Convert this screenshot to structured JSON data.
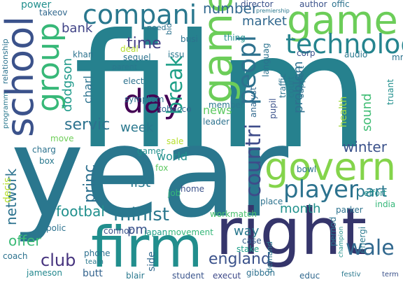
{
  "words": [
    {
      "text": "film",
      "color": "#26818e"
    },
    {
      "text": "year",
      "color": "#2a778e"
    },
    {
      "text": "right",
      "color": "#35356b"
    },
    {
      "text": "firm",
      "color": "#218e8d"
    },
    {
      "text": "govern",
      "color": "#84d44b"
    },
    {
      "text": "game",
      "color": "#6ccd59"
    },
    {
      "text": "share",
      "color": "#75d054"
    },
    {
      "text": "school",
      "color": "#3b528b"
    },
    {
      "text": "day",
      "color": "#440154"
    },
    {
      "text": "group",
      "color": "#37b878"
    },
    {
      "text": "technolog",
      "color": "#25848e"
    },
    {
      "text": "compani",
      "color": "#2a788e"
    },
    {
      "text": "player",
      "color": "#2c728e"
    },
    {
      "text": "peopl",
      "color": "#2d718e"
    },
    {
      "text": "break",
      "color": "#1fa088"
    },
    {
      "text": "countri",
      "color": "#3e4c8a"
    },
    {
      "text": "wale",
      "color": "#31688e"
    },
    {
      "text": "england",
      "color": "#3b528b"
    },
    {
      "text": "minist",
      "color": "#2a788e"
    },
    {
      "text": "servic",
      "color": "#2c728e"
    },
    {
      "text": "time",
      "color": "#433e85"
    },
    {
      "text": "winter",
      "color": "#3b528b"
    },
    {
      "text": "club",
      "color": "#46337e"
    },
    {
      "text": "footbal",
      "color": "#21908d"
    },
    {
      "text": "network",
      "color": "#2c728e"
    },
    {
      "text": "princ",
      "color": "#2d708e"
    },
    {
      "text": "part",
      "color": "#2a788e"
    },
    {
      "text": "offer",
      "color": "#3aba76"
    },
    {
      "text": "month",
      "color": "#21918c"
    },
    {
      "text": "list",
      "color": "#2a788e"
    },
    {
      "text": "week",
      "color": "#2a788e"
    },
    {
      "text": "number",
      "color": "#31688e"
    },
    {
      "text": "market",
      "color": "#31688e"
    },
    {
      "text": "bank",
      "color": "#414487"
    },
    {
      "text": "dodgson",
      "color": "#1f9a8a"
    },
    {
      "text": "charl",
      "color": "#2c728e"
    },
    {
      "text": "way",
      "color": "#2a788e"
    },
    {
      "text": "pm",
      "color": "#3b528b"
    },
    {
      "text": "problem",
      "color": "#2d708e"
    },
    {
      "text": "sound",
      "color": "#3fbc73"
    },
    {
      "text": "news",
      "color": "#5ec962"
    },
    {
      "text": "world",
      "color": "#21908d"
    },
    {
      "text": "health",
      "color": "#9fda3a"
    },
    {
      "text": "decis",
      "color": "#b5de2b"
    },
    {
      "text": "power",
      "color": "#218f8d"
    },
    {
      "text": "jameson",
      "color": "#23888e"
    },
    {
      "text": "phone",
      "color": "#2d708e"
    },
    {
      "text": "butt",
      "color": "#33638d"
    },
    {
      "text": "stake",
      "color": "#1f9e89"
    },
    {
      "text": "case",
      "color": "#355f8d"
    },
    {
      "text": "side",
      "color": "#31688e"
    },
    {
      "text": "parker",
      "color": "#2c728e"
    },
    {
      "text": "student",
      "color": "#3a548c"
    },
    {
      "text": "blair",
      "color": "#2a788e"
    },
    {
      "text": "execut",
      "color": "#3e4989"
    },
    {
      "text": "gibbon",
      "color": "#2d708e"
    },
    {
      "text": "educ",
      "color": "#31688e"
    },
    {
      "text": "festiv",
      "color": "#2a788e"
    },
    {
      "text": "term",
      "color": "#3b528b"
    },
    {
      "text": "coach",
      "color": "#2c728e"
    },
    {
      "text": "team",
      "color": "#2a788e"
    },
    {
      "text": "polic",
      "color": "#2c728e"
    },
    {
      "text": "connor",
      "color": "#3b528b"
    },
    {
      "text": "japan",
      "color": "#1fa088"
    },
    {
      "text": "movement",
      "color": "#35b779"
    },
    {
      "text": "workmatch",
      "color": "#4ac16d"
    },
    {
      "text": "place",
      "color": "#2c728e"
    },
    {
      "text": "demand",
      "color": "#2a788e"
    },
    {
      "text": "pernod",
      "color": "#2c728e"
    },
    {
      "text": "energi",
      "color": "#2a788e"
    },
    {
      "text": "champion",
      "color": "#21918c"
    },
    {
      "text": "india",
      "color": "#35b779"
    },
    {
      "text": "effort",
      "color": "#21918c"
    },
    {
      "text": "bowl",
      "color": "#2c728e"
    },
    {
      "text": "home",
      "color": "#3b528b"
    },
    {
      "text": "job",
      "color": "#35b779"
    },
    {
      "text": "fox",
      "color": "#5ec962"
    },
    {
      "text": "sale",
      "color": "#b5de2b"
    },
    {
      "text": "gamer",
      "color": "#21908d"
    },
    {
      "text": "charg",
      "color": "#2c728e"
    },
    {
      "text": "move",
      "color": "#6ece58"
    },
    {
      "text": "box",
      "color": "#2a788e"
    },
    {
      "text": "symptom",
      "color": "#2c728e"
    },
    {
      "text": "tobacco",
      "color": "#31688e"
    },
    {
      "text": "elect",
      "color": "#2c728e"
    },
    {
      "text": "member",
      "color": "#2a788e"
    },
    {
      "text": "leader",
      "color": "#2c728e"
    },
    {
      "text": "analyst",
      "color": "#31688e"
    },
    {
      "text": "pupil",
      "color": "#3b528b"
    },
    {
      "text": "traffic",
      "color": "#2c728e"
    },
    {
      "text": "court",
      "color": "#2a788e"
    },
    {
      "text": "support",
      "color": "#2c728e"
    },
    {
      "text": "director",
      "color": "#3b528b"
    },
    {
      "text": "offic",
      "color": "#2c728e"
    },
    {
      "text": "author",
      "color": "#3b528b"
    },
    {
      "text": "premiership",
      "color": "#2a788e"
    },
    {
      "text": "takeov",
      "color": "#31688e"
    },
    {
      "text": "need",
      "color": "#2c728e"
    },
    {
      "text": "deal",
      "color": "#b5de2b"
    },
    {
      "text": "khan",
      "color": "#2c728e"
    },
    {
      "text": "parent",
      "color": "#2a788e"
    },
    {
      "text": "sequel",
      "color": "#2c728e"
    },
    {
      "text": "busi",
      "color": "#2c728e"
    },
    {
      "text": "issu",
      "color": "#2a788e"
    },
    {
      "text": "bid",
      "color": "#2c728e"
    },
    {
      "text": "thing",
      "color": "#21908d"
    },
    {
      "text": "languag",
      "color": "#2c728e"
    },
    {
      "text": "corp",
      "color": "#3b528b"
    },
    {
      "text": "audio",
      "color": "#2a788e"
    },
    {
      "text": "mr",
      "color": "#2c728e"
    },
    {
      "text": "truant",
      "color": "#21908d"
    },
    {
      "text": "relationship",
      "color": "#2c728e"
    },
    {
      "text": "programm",
      "color": "#2a788e"
    }
  ]
}
